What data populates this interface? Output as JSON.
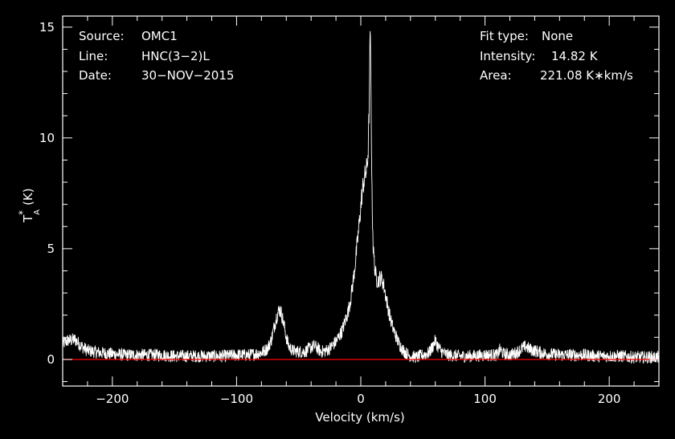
{
  "info_left": [
    {
      "key": "Source:",
      "value": "OMC1"
    },
    {
      "key": "Line:",
      "value": "HNC(3−2)L"
    },
    {
      "key": "Date:",
      "value": "30−NOV−2015"
    }
  ],
  "info_right": [
    {
      "key": "Fit type:",
      "value": "None"
    },
    {
      "key": "Intensity:",
      "value": "14.82 K"
    },
    {
      "key": "Area:",
      "value": "221.08 K∗km/s"
    }
  ],
  "colors": {
    "background": "#000000",
    "axes": "#ffffff",
    "spectrum": "#ffffff",
    "baseline": "#ff0000"
  },
  "chart_data": {
    "type": "line",
    "xlabel": "Velocity (km/s)",
    "ylabel_main": "T",
    "ylabel_sup": "*",
    "ylabel_sub": "A",
    "ylabel_unit": "(K)",
    "xlim": [
      -240,
      240
    ],
    "ylim": [
      -1.2,
      15.5
    ],
    "x_ticks": [
      -200,
      -100,
      0,
      100,
      200
    ],
    "x_tick_labels": [
      "−200",
      "−100",
      "0",
      "100",
      "200"
    ],
    "y_ticks": [
      0,
      5,
      10,
      15
    ],
    "y_tick_labels": [
      "0",
      "5",
      "10",
      "15"
    ],
    "baseline_y": 0,
    "series": [
      {
        "x": [
          -240,
          -236,
          -230,
          -225,
          -220,
          -210,
          -200,
          -190,
          -180,
          -170,
          -160,
          -150,
          -140,
          -130,
          -120,
          -110,
          -100,
          -90,
          -80,
          -75,
          -72,
          -70,
          -68,
          -66,
          -65,
          -64,
          -62,
          -60,
          -58,
          -55,
          -50,
          -45,
          -40,
          -37,
          -35,
          -32,
          -28,
          -25,
          -20,
          -15,
          -10,
          -8,
          -6,
          -4,
          -2,
          0,
          1,
          2,
          3,
          4,
          5,
          6,
          7,
          7.5,
          8,
          8.5,
          9,
          10,
          11,
          12,
          13,
          14,
          15,
          16,
          17,
          18,
          19,
          20,
          21,
          22,
          24,
          26,
          28,
          30,
          33,
          36,
          40,
          45,
          50,
          55,
          58,
          60,
          62,
          65,
          70,
          80,
          90,
          100,
          110,
          112,
          115,
          120,
          125,
          130,
          133,
          136,
          140,
          145,
          150,
          160,
          170,
          180,
          190,
          200,
          210,
          220,
          230,
          240
        ],
        "y": [
          0.7,
          0.85,
          0.9,
          0.6,
          0.4,
          0.3,
          0.25,
          0.2,
          0.2,
          0.2,
          0.2,
          0.15,
          0.15,
          0.15,
          0.15,
          0.15,
          0.2,
          0.2,
          0.3,
          0.5,
          0.9,
          1.4,
          1.9,
          2.2,
          2.25,
          2.1,
          1.6,
          1.0,
          0.6,
          0.4,
          0.35,
          0.35,
          0.55,
          0.6,
          0.5,
          0.35,
          0.4,
          0.5,
          0.8,
          1.3,
          2.2,
          2.8,
          3.6,
          4.6,
          5.7,
          6.9,
          7.5,
          7.9,
          8.2,
          8.4,
          8.7,
          9.5,
          12.2,
          14.82,
          13.0,
          10.5,
          7.5,
          5.0,
          4.3,
          3.8,
          3.6,
          3.55,
          3.65,
          3.7,
          3.6,
          3.45,
          3.2,
          2.9,
          2.6,
          2.3,
          1.8,
          1.4,
          1.1,
          0.8,
          0.5,
          0.3,
          0.15,
          0.1,
          0.2,
          0.3,
          0.6,
          0.85,
          0.6,
          0.35,
          0.2,
          0.15,
          0.15,
          0.2,
          0.2,
          0.45,
          0.25,
          0.2,
          0.3,
          0.5,
          0.6,
          0.45,
          0.4,
          0.3,
          0.25,
          0.2,
          0.2,
          0.2,
          0.15,
          0.15,
          0.15,
          0.1,
          0.1,
          0.1
        ]
      }
    ]
  }
}
